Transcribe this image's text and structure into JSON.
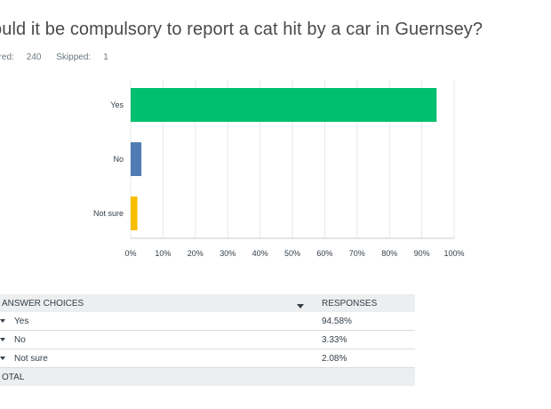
{
  "question": {
    "title": "ould it be compulsory to report a cat hit by a car in Guernsey?"
  },
  "stats": {
    "answered_label": "vered:",
    "answered_value": "240",
    "skipped_label": "Skipped:",
    "skipped_value": "1"
  },
  "chart_data": {
    "type": "bar",
    "orientation": "horizontal",
    "categories": [
      "Yes",
      "No",
      "Not sure"
    ],
    "values": [
      94.58,
      3.33,
      2.08
    ],
    "colors": [
      "#00bf6f",
      "#507cb6",
      "#f9be00"
    ],
    "xlim": [
      0,
      100
    ],
    "xticks": [
      0,
      10,
      20,
      30,
      40,
      50,
      60,
      70,
      80,
      90,
      100
    ],
    "xtick_labels": [
      "0%",
      "10%",
      "20%",
      "30%",
      "40%",
      "50%",
      "60%",
      "70%",
      "80%",
      "90%",
      "100%"
    ],
    "grid": true,
    "title": "",
    "xlabel": "",
    "ylabel": ""
  },
  "table": {
    "header": {
      "choices": "ANSWER CHOICES",
      "responses": "RESPONSES"
    },
    "rows": [
      {
        "label": "Yes",
        "value": "94.58%"
      },
      {
        "label": "No",
        "value": "3.33%"
      },
      {
        "label": "Not sure",
        "value": "2.08%"
      }
    ],
    "total_label": "OTAL"
  }
}
